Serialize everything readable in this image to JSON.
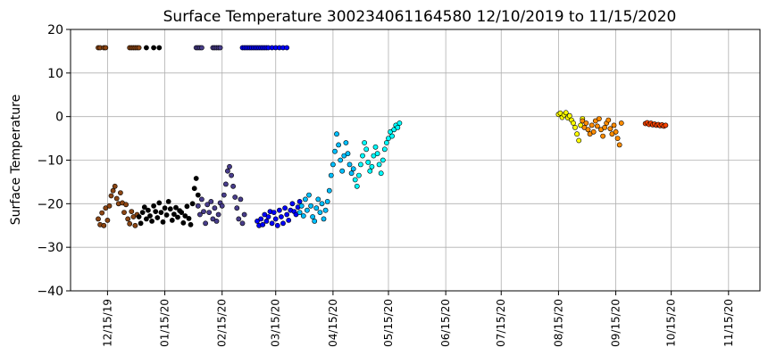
{
  "chart_data": {
    "type": "scatter",
    "title": "Surface Temperature 300234061164580  12/10/2019 to 11/15/2020",
    "xlabel": "",
    "ylabel": "Surface Temperature",
    "ylim": [
      -40,
      20
    ],
    "yticks": [
      -40,
      -30,
      -20,
      -10,
      0,
      10,
      20
    ],
    "xlim": [
      "2019-11-25",
      "2020-12-02"
    ],
    "xticks": [
      {
        "date": "2019-12-15",
        "label": "12/15/19"
      },
      {
        "date": "2020-01-15",
        "label": "01/15/20"
      },
      {
        "date": "2020-02-15",
        "label": "02/15/20"
      },
      {
        "date": "2020-03-15",
        "label": "03/15/20"
      },
      {
        "date": "2020-04-15",
        "label": "04/15/20"
      },
      {
        "date": "2020-05-15",
        "label": "05/15/20"
      },
      {
        "date": "2020-06-15",
        "label": "06/15/20"
      },
      {
        "date": "2020-07-15",
        "label": "07/15/20"
      },
      {
        "date": "2020-08-15",
        "label": "08/15/20"
      },
      {
        "date": "2020-09-15",
        "label": "09/15/20"
      },
      {
        "date": "2020-10-15",
        "label": "10/15/20"
      },
      {
        "date": "2020-11-15",
        "label": "11/15/20"
      }
    ],
    "grid": true,
    "marker_edge_color": "#000000",
    "series": [
      {
        "color": "#8B4513",
        "points": [
          [
            "2019-12-10",
            -23.5
          ],
          [
            "2019-12-11",
            -24.8
          ],
          [
            "2019-12-12",
            -22.1
          ],
          [
            "2019-12-13",
            -25.0
          ],
          [
            "2019-12-14",
            -21.0
          ],
          [
            "2019-12-15",
            -23.8
          ],
          [
            "2019-12-16",
            -20.5
          ],
          [
            "2019-12-17",
            -18.2
          ],
          [
            "2019-12-18",
            -17.0
          ],
          [
            "2019-12-19",
            -16.0
          ],
          [
            "2019-12-20",
            -18.8
          ],
          [
            "2019-12-21",
            -20.0
          ],
          [
            "2019-12-22",
            -17.5
          ],
          [
            "2019-12-23",
            -19.8
          ],
          [
            "2019-12-24",
            -22.0
          ],
          [
            "2019-12-25",
            -20.2
          ],
          [
            "2019-12-26",
            -23.5
          ],
          [
            "2019-12-27",
            -24.6
          ],
          [
            "2019-12-28",
            -21.8
          ],
          [
            "2019-12-29",
            -23.0
          ],
          [
            "2019-12-30",
            -25.0
          ],
          [
            "2019-12-31",
            -22.5
          ],
          [
            "2019-12-10",
            15.8
          ],
          [
            "2019-12-11",
            15.8
          ],
          [
            "2019-12-13",
            15.8
          ],
          [
            "2019-12-14",
            15.8
          ],
          [
            "2019-12-27",
            15.8
          ],
          [
            "2019-12-28",
            15.8
          ],
          [
            "2019-12-29",
            15.8
          ],
          [
            "2019-12-30",
            15.8
          ],
          [
            "2019-12-31",
            15.8
          ],
          [
            "2020-01-01",
            15.8
          ]
        ]
      },
      {
        "color": "#000000",
        "points": [
          [
            "2020-01-01",
            -23.0
          ],
          [
            "2020-01-02",
            -24.5
          ],
          [
            "2020-01-03",
            -22.0
          ],
          [
            "2020-01-04",
            -20.8
          ],
          [
            "2020-01-05",
            -23.5
          ],
          [
            "2020-01-06",
            -21.5
          ],
          [
            "2020-01-07",
            -22.8
          ],
          [
            "2020-01-08",
            -24.0
          ],
          [
            "2020-01-09",
            -20.5
          ],
          [
            "2020-01-10",
            -21.8
          ],
          [
            "2020-01-11",
            -23.2
          ],
          [
            "2020-01-12",
            -19.8
          ],
          [
            "2020-01-13",
            -22.0
          ],
          [
            "2020-01-14",
            -24.2
          ],
          [
            "2020-01-15",
            -21.0
          ],
          [
            "2020-01-16",
            -22.6
          ],
          [
            "2020-01-17",
            -19.5
          ],
          [
            "2020-01-18",
            -21.2
          ],
          [
            "2020-01-19",
            -23.8
          ],
          [
            "2020-01-20",
            -22.4
          ],
          [
            "2020-01-21",
            -20.9
          ],
          [
            "2020-01-22",
            -23.1
          ],
          [
            "2020-01-23",
            -21.6
          ],
          [
            "2020-01-24",
            -22.0
          ],
          [
            "2020-01-25",
            -24.4
          ],
          [
            "2020-01-26",
            -22.8
          ],
          [
            "2020-01-27",
            -20.6
          ],
          [
            "2020-01-28",
            -23.4
          ],
          [
            "2020-01-29",
            -24.8
          ],
          [
            "2020-01-30",
            -20.0
          ],
          [
            "2020-01-31",
            -16.5
          ],
          [
            "2020-02-01",
            -14.2
          ],
          [
            "2020-02-02",
            -18.0
          ],
          [
            "2020-01-05",
            15.8
          ],
          [
            "2020-01-09",
            15.8
          ],
          [
            "2020-01-12",
            15.8
          ]
        ]
      },
      {
        "color": "#483D8B",
        "points": [
          [
            "2020-02-02",
            -20.5
          ],
          [
            "2020-02-03",
            -22.5
          ],
          [
            "2020-02-04",
            -19.0
          ],
          [
            "2020-02-05",
            -21.8
          ],
          [
            "2020-02-06",
            -24.5
          ],
          [
            "2020-02-07",
            -20.2
          ],
          [
            "2020-02-08",
            -22.0
          ],
          [
            "2020-02-09",
            -19.5
          ],
          [
            "2020-02-10",
            -23.5
          ],
          [
            "2020-02-11",
            -21.0
          ],
          [
            "2020-02-12",
            -24.0
          ],
          [
            "2020-02-13",
            -22.5
          ],
          [
            "2020-02-14",
            -19.8
          ],
          [
            "2020-02-15",
            -20.5
          ],
          [
            "2020-02-16",
            -18.0
          ],
          [
            "2020-02-17",
            -15.5
          ],
          [
            "2020-02-18",
            -12.5
          ],
          [
            "2020-02-19",
            -11.5
          ],
          [
            "2020-02-20",
            -13.5
          ],
          [
            "2020-02-21",
            -16.0
          ],
          [
            "2020-02-22",
            -18.5
          ],
          [
            "2020-02-23",
            -21.0
          ],
          [
            "2020-02-24",
            -23.5
          ],
          [
            "2020-02-25",
            -19.0
          ],
          [
            "2020-02-26",
            -24.5
          ],
          [
            "2020-02-27",
            -22.5
          ],
          [
            "2020-02-01",
            15.8
          ],
          [
            "2020-02-02",
            15.8
          ],
          [
            "2020-02-03",
            15.8
          ],
          [
            "2020-02-04",
            15.8
          ],
          [
            "2020-02-10",
            15.8
          ],
          [
            "2020-02-11",
            15.8
          ],
          [
            "2020-02-12",
            15.8
          ],
          [
            "2020-02-13",
            15.8
          ],
          [
            "2020-02-14",
            15.8
          ]
        ]
      },
      {
        "color": "#0000FF",
        "points": [
          [
            "2020-03-05",
            -24.0
          ],
          [
            "2020-03-06",
            -25.0
          ],
          [
            "2020-03-07",
            -23.5
          ],
          [
            "2020-03-08",
            -24.8
          ],
          [
            "2020-03-09",
            -22.5
          ],
          [
            "2020-03-10",
            -24.0
          ],
          [
            "2020-03-11",
            -23.0
          ],
          [
            "2020-03-12",
            -21.8
          ],
          [
            "2020-03-13",
            -24.5
          ],
          [
            "2020-03-14",
            -22.0
          ],
          [
            "2020-03-15",
            -23.5
          ],
          [
            "2020-03-16",
            -25.0
          ],
          [
            "2020-03-17",
            -21.5
          ],
          [
            "2020-03-18",
            -23.0
          ],
          [
            "2020-03-19",
            -24.5
          ],
          [
            "2020-03-20",
            -21.0
          ],
          [
            "2020-03-21",
            -22.5
          ],
          [
            "2020-03-22",
            -23.8
          ],
          [
            "2020-03-23",
            -21.5
          ],
          [
            "2020-03-24",
            -20.0
          ],
          [
            "2020-03-25",
            -21.8
          ],
          [
            "2020-03-26",
            -22.5
          ],
          [
            "2020-03-27",
            -20.8
          ],
          [
            "2020-03-28",
            -19.5
          ],
          [
            "2020-02-26",
            15.8
          ],
          [
            "2020-02-27",
            15.8
          ],
          [
            "2020-02-28",
            15.8
          ],
          [
            "2020-02-29",
            15.8
          ],
          [
            "2020-03-01",
            15.8
          ],
          [
            "2020-03-02",
            15.8
          ],
          [
            "2020-03-03",
            15.8
          ],
          [
            "2020-03-04",
            15.8
          ],
          [
            "2020-03-05",
            15.8
          ],
          [
            "2020-03-06",
            15.8
          ],
          [
            "2020-03-07",
            15.8
          ],
          [
            "2020-03-08",
            15.8
          ],
          [
            "2020-03-09",
            15.8
          ],
          [
            "2020-03-10",
            15.8
          ],
          [
            "2020-03-11",
            15.8
          ],
          [
            "2020-03-13",
            15.8
          ],
          [
            "2020-03-15",
            15.8
          ],
          [
            "2020-03-17",
            15.8
          ],
          [
            "2020-03-19",
            15.8
          ],
          [
            "2020-03-21",
            15.8
          ]
        ]
      },
      {
        "color": "#00BFFF",
        "points": [
          [
            "2020-03-28",
            -22.0
          ],
          [
            "2020-03-29",
            -20.5
          ],
          [
            "2020-03-30",
            -22.8
          ],
          [
            "2020-03-31",
            -19.0
          ],
          [
            "2020-04-01",
            -21.5
          ],
          [
            "2020-04-02",
            -18.0
          ],
          [
            "2020-04-03",
            -20.5
          ],
          [
            "2020-04-04",
            -23.0
          ],
          [
            "2020-04-05",
            -24.0
          ],
          [
            "2020-04-06",
            -21.0
          ],
          [
            "2020-04-07",
            -19.0
          ],
          [
            "2020-04-08",
            -22.0
          ],
          [
            "2020-04-09",
            -20.0
          ],
          [
            "2020-04-10",
            -23.5
          ],
          [
            "2020-04-11",
            -21.5
          ],
          [
            "2020-04-12",
            -19.5
          ],
          [
            "2020-04-13",
            -17.0
          ],
          [
            "2020-04-14",
            -13.5
          ],
          [
            "2020-04-15",
            -11.0
          ],
          [
            "2020-04-16",
            -8.0
          ],
          [
            "2020-04-17",
            -4.0
          ],
          [
            "2020-04-18",
            -6.5
          ],
          [
            "2020-04-19",
            -10.0
          ],
          [
            "2020-04-20",
            -12.5
          ],
          [
            "2020-04-21",
            -9.0
          ],
          [
            "2020-04-22",
            -6.0
          ],
          [
            "2020-04-23",
            -8.5
          ],
          [
            "2020-04-24",
            -11.0
          ],
          [
            "2020-04-25",
            -13.0
          ],
          [
            "2020-04-26",
            -12.0
          ]
        ]
      },
      {
        "color": "#00FFFF",
        "points": [
          [
            "2020-04-27",
            -14.5
          ],
          [
            "2020-04-28",
            -16.0
          ],
          [
            "2020-04-29",
            -13.5
          ],
          [
            "2020-04-30",
            -11.0
          ],
          [
            "2020-05-01",
            -9.0
          ],
          [
            "2020-05-02",
            -6.0
          ],
          [
            "2020-05-03",
            -7.5
          ],
          [
            "2020-05-04",
            -10.5
          ],
          [
            "2020-05-05",
            -12.5
          ],
          [
            "2020-05-06",
            -11.5
          ],
          [
            "2020-05-07",
            -9.0
          ],
          [
            "2020-05-08",
            -7.0
          ],
          [
            "2020-05-09",
            -8.5
          ],
          [
            "2020-05-10",
            -11.0
          ],
          [
            "2020-05-11",
            -13.0
          ],
          [
            "2020-05-12",
            -10.0
          ],
          [
            "2020-05-13",
            -7.5
          ],
          [
            "2020-05-14",
            -6.0
          ],
          [
            "2020-05-15",
            -5.0
          ],
          [
            "2020-05-16",
            -3.5
          ],
          [
            "2020-05-17",
            -4.5
          ],
          [
            "2020-05-18",
            -3.0
          ],
          [
            "2020-05-19",
            -2.0
          ],
          [
            "2020-05-20",
            -2.5
          ],
          [
            "2020-05-21",
            -1.5
          ]
        ]
      },
      {
        "color": "#FFFF00",
        "points": [
          [
            "2020-08-15",
            0.5
          ],
          [
            "2020-08-16",
            0.8
          ],
          [
            "2020-08-17",
            -0.2
          ],
          [
            "2020-08-18",
            0.4
          ],
          [
            "2020-08-19",
            0.9
          ],
          [
            "2020-08-20",
            -0.3
          ],
          [
            "2020-08-21",
            0.2
          ],
          [
            "2020-08-22",
            -0.8
          ],
          [
            "2020-08-23",
            -1.5
          ],
          [
            "2020-08-24",
            -2.5
          ],
          [
            "2020-08-25",
            -4.0
          ],
          [
            "2020-08-26",
            -5.5
          ],
          [
            "2020-08-27",
            -2.0
          ],
          [
            "2020-08-28",
            -0.5
          ]
        ]
      },
      {
        "color": "#FF8C00",
        "points": [
          [
            "2020-08-28",
            -1.0
          ],
          [
            "2020-08-29",
            -2.5
          ],
          [
            "2020-08-30",
            -1.5
          ],
          [
            "2020-08-31",
            -3.0
          ],
          [
            "2020-09-01",
            -4.0
          ],
          [
            "2020-09-02",
            -2.0
          ],
          [
            "2020-09-03",
            -3.5
          ],
          [
            "2020-09-04",
            -1.0
          ],
          [
            "2020-09-05",
            -2.2
          ],
          [
            "2020-09-06",
            -0.5
          ],
          [
            "2020-09-07",
            -3.0
          ],
          [
            "2020-09-08",
            -4.5
          ],
          [
            "2020-09-09",
            -2.5
          ],
          [
            "2020-09-10",
            -1.5
          ],
          [
            "2020-09-11",
            -0.8
          ],
          [
            "2020-09-12",
            -2.8
          ],
          [
            "2020-09-13",
            -4.0
          ],
          [
            "2020-09-14",
            -2.0
          ],
          [
            "2020-09-15",
            -3.5
          ],
          [
            "2020-09-16",
            -5.0
          ],
          [
            "2020-09-17",
            -6.5
          ],
          [
            "2020-09-18",
            -1.5
          ]
        ]
      },
      {
        "color": "#FF4500",
        "points": [
          [
            "2020-10-01",
            -1.6
          ],
          [
            "2020-10-02",
            -1.4
          ],
          [
            "2020-10-03",
            -1.8
          ],
          [
            "2020-10-04",
            -1.5
          ],
          [
            "2020-10-05",
            -1.9
          ],
          [
            "2020-10-06",
            -1.7
          ],
          [
            "2020-10-07",
            -2.0
          ],
          [
            "2020-10-08",
            -1.8
          ],
          [
            "2020-10-09",
            -2.1
          ],
          [
            "2020-10-10",
            -1.9
          ],
          [
            "2020-10-11",
            -2.2
          ],
          [
            "2020-10-12",
            -2.0
          ]
        ]
      }
    ]
  }
}
